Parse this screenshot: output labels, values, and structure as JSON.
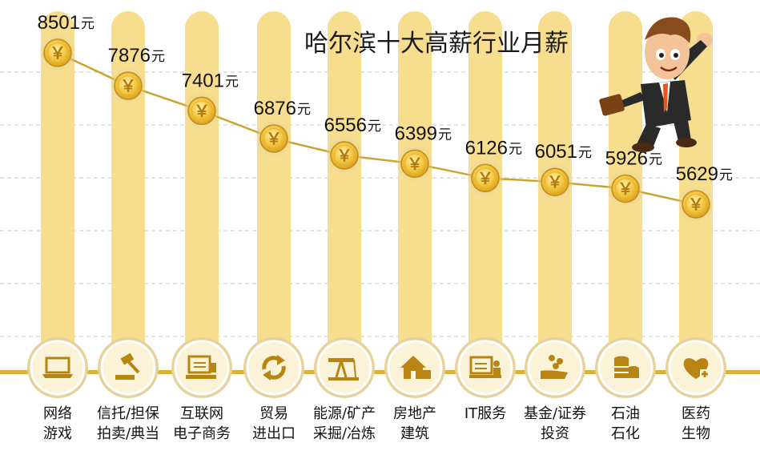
{
  "chart_data": {
    "type": "line",
    "title": "哈尔滨十大高薪行业月薪",
    "unit": "元",
    "coin_symbol": "￥",
    "categories": [
      [
        "网络",
        "游戏"
      ],
      [
        "信托/担保",
        "拍卖/典当"
      ],
      [
        "互联网",
        "电子商务"
      ],
      [
        "贸易",
        "进出口"
      ],
      [
        "能源/矿产",
        "采掘/冶炼"
      ],
      [
        "房地产",
        "建筑"
      ],
      [
        "IT服务"
      ],
      [
        "基金/证券",
        "投资"
      ],
      [
        "石油",
        "石化"
      ],
      [
        "医药",
        "生物"
      ]
    ],
    "values": [
      8501,
      7876,
      7401,
      6876,
      6556,
      6399,
      6126,
      6051,
      5926,
      5629
    ],
    "icons": [
      "laptop-icon",
      "gavel-icon",
      "computer-monitor-icon",
      "recycle-arrows-icon",
      "oil-pump-icon",
      "house-icon",
      "presenter-screen-icon",
      "hand-coins-icon",
      "oil-barrel-icon",
      "heart-plus-icon"
    ],
    "grid": true,
    "colors": {
      "column": "#f6de8e",
      "line": "#c8a531",
      "coin": "#f2c24a",
      "baseline": "#d9b23a"
    }
  }
}
